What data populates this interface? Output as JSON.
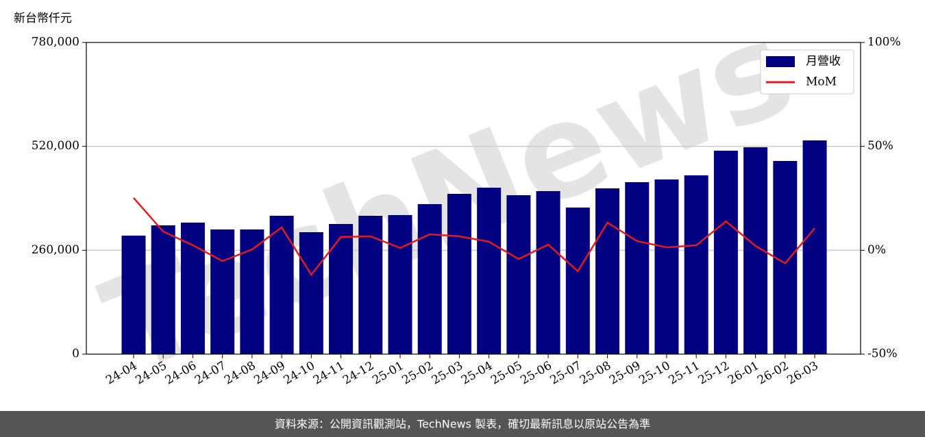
{
  "chart_data": {
    "type": "bar_line",
    "y_axis_label": "新台幣仟元",
    "watermark": "TechNews",
    "footer": "資料來源：公開資訊觀測站，TechNews 製表，確切最新訊息以原站公告為準",
    "categories": [
      "24-04",
      "24-05",
      "24-06",
      "24-07",
      "24-08",
      "24-09",
      "24-10",
      "24-11",
      "24-12",
      "25-01",
      "25-02",
      "25-03",
      "25-04",
      "25-05",
      "25-06",
      "25-07",
      "25-08",
      "25-09",
      "25-10",
      "25-11",
      "25-12",
      "26-01",
      "26-02",
      "26-03"
    ],
    "series": [
      {
        "name": "月營收",
        "type": "bar",
        "color": "#000080",
        "values": [
          296571,
          322286,
          329143,
          312000,
          312000,
          346286,
          305143,
          325714,
          346286,
          348000,
          375429,
          401143,
          416571,
          397714,
          408000,
          366857,
          414857,
          430286,
          437143,
          447429,
          509143,
          517714,
          483429,
          534857
        ]
      },
      {
        "name": "MoM",
        "type": "line",
        "axis": "y2",
        "color": "#e41a1c",
        "values": [
          25.2,
          9.0,
          2.4,
          -5.2,
          0.4,
          11.0,
          -11.8,
          6.4,
          6.7,
          1.1,
          7.7,
          6.7,
          4.1,
          -4.2,
          2.7,
          -10.1,
          13.3,
          4.4,
          1.4,
          2.4,
          13.9,
          2.1,
          -6.3,
          10.6
        ]
      }
    ],
    "ylim": [
      0,
      780000
    ],
    "yticks": [
      0,
      {
        "value": 260000,
        "label": "260,000"
      },
      {
        "value": 520000,
        "label": "520,000"
      },
      {
        "value": 780000,
        "label": "780,000"
      }
    ],
    "y2lim": [
      -50,
      100
    ],
    "y2ticks": [
      {
        "value": -50,
        "label": "-50%"
      },
      {
        "value": 0,
        "label": "0%"
      },
      {
        "value": 50,
        "label": "50%"
      },
      {
        "value": 100,
        "label": "100%"
      }
    ],
    "grid": true,
    "legend": "upper right"
  }
}
